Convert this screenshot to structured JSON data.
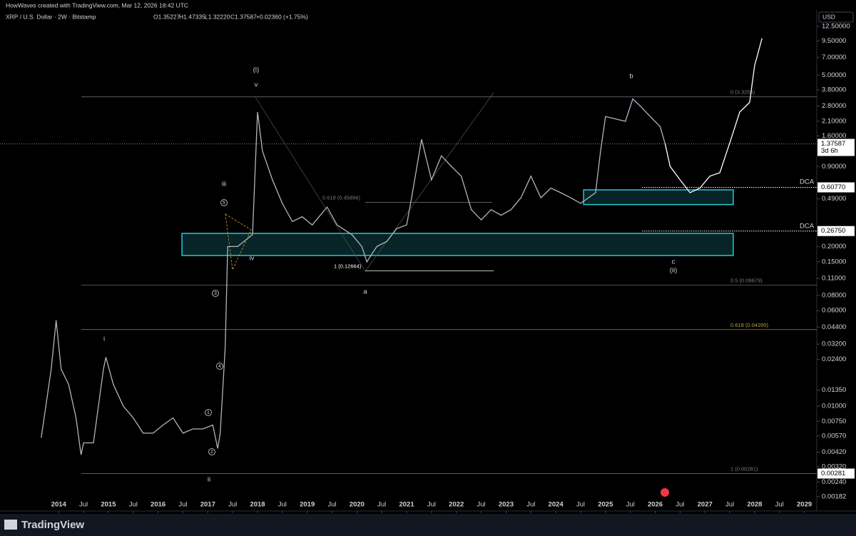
{
  "chart_data": {
    "type": "line",
    "log_scale": true,
    "title": "HowWaves created with TradingView.com, Mar 12, 2026 18:42 UTC",
    "subtitle": "XRP / U.S. Dollar · 2W · Bitstamp",
    "ohlc": [
      "O1.35227",
      "H1.47335",
      "L1.32220",
      "C1.37587",
      "+0.02360 (+1.75%)"
    ],
    "currency": "USD",
    "brand": "TradingView",
    "xlim": [
      2012.82,
      2029.25
    ],
    "ylim": [
      0.00177,
      15.7
    ],
    "xticks": [
      2014,
      {
        "value": 2014.5,
        "label": "Jul"
      },
      2015,
      {
        "value": 2015.5,
        "label": "Jul"
      },
      2016,
      {
        "value": 2016.5,
        "label": "Jul"
      },
      2017,
      {
        "value": 2017.5,
        "label": "Jul"
      },
      2018,
      {
        "value": 2018.5,
        "label": "Jul"
      },
      2019,
      {
        "value": 2019.5,
        "label": "Jul"
      },
      2020,
      {
        "value": 2020.5,
        "label": "Jul"
      },
      2021,
      {
        "value": 2021.5,
        "label": "Jul"
      },
      2022,
      {
        "value": 2022.5,
        "label": "Jul"
      },
      2023,
      {
        "value": 2023.5,
        "label": "Jul"
      },
      2024,
      {
        "value": 2024.5,
        "label": "Jul"
      },
      2025,
      {
        "value": 2025.5,
        "label": "Jul"
      },
      2026,
      {
        "value": 2026.5,
        "label": "Jul"
      },
      2027,
      {
        "value": 2027.5,
        "label": "Jul"
      },
      2028,
      {
        "value": 2028.5,
        "label": "Jul"
      },
      2029
    ],
    "yticks": [
      {
        "value": 12.5,
        "label": "12.50000"
      },
      {
        "value": 9.5,
        "label": "9.50000"
      },
      {
        "value": 7,
        "label": "7.00000"
      },
      {
        "value": 5,
        "label": "5.00000"
      },
      {
        "value": 3.8,
        "label": "3.80000"
      },
      {
        "value": 2.8,
        "label": "2.80000"
      },
      {
        "value": 2.1,
        "label": "2.10000"
      },
      {
        "value": 1.6,
        "label": "1.60000"
      },
      {
        "value": 0.9,
        "label": "0.90000"
      },
      {
        "value": 0.49,
        "label": "0.49000"
      },
      {
        "value": 0.2,
        "label": "0.20000"
      },
      {
        "value": 0.15,
        "label": "0.15000"
      },
      {
        "value": 0.11,
        "label": "0.11000"
      },
      {
        "value": 0.08,
        "label": "0.08000"
      },
      {
        "value": 0.06,
        "label": "0.06000"
      },
      {
        "value": 0.044,
        "label": "0.04400"
      },
      {
        "value": 0.032,
        "label": "0.03200"
      },
      {
        "value": 0.024,
        "label": "0.02400"
      },
      {
        "value": 0.0135,
        "label": "0.01350"
      },
      {
        "value": 0.01,
        "label": "0.01000"
      },
      {
        "value": 0.0075,
        "label": "0.00750"
      },
      {
        "value": 0.0057,
        "label": "0.00570"
      },
      {
        "value": 0.0042,
        "label": "0.00420"
      },
      {
        "value": 0.0032,
        "label": "0.00320"
      },
      {
        "value": 0.0024,
        "label": "0.00240"
      },
      {
        "value": 0.00182,
        "label": "0.00182"
      }
    ],
    "series": [
      {
        "color": "#b2b5be",
        "x": [
          2013.65,
          2013.85,
          2013.95,
          2014.05,
          2014.2,
          2014.35,
          2014.45,
          2014.5,
          2014.7,
          2014.9,
          2014.95,
          2015.1,
          2015.3,
          2015.5,
          2015.7,
          2015.9,
          2016.1,
          2016.3,
          2016.5,
          2016.7,
          2016.9,
          2017.1,
          2017.2,
          2017.25,
          2017.35,
          2017.4,
          2017.5,
          2017.6,
          2017.9,
          2018.0,
          2018.1,
          2018.3,
          2018.5,
          2018.7,
          2018.9,
          2019.1,
          2019.4,
          2019.6,
          2019.9,
          2020.1,
          2020.2,
          2020.4,
          2020.6,
          2020.8,
          2021.0,
          2021.1,
          2021.3,
          2021.5,
          2021.7,
          2021.9,
          2022.1,
          2022.3,
          2022.5,
          2022.7,
          2022.9,
          2023.1,
          2023.3,
          2023.5,
          2023.7,
          2023.9,
          2024.1,
          2024.3,
          2024.5,
          2024.8,
          2024.9,
          2025.0,
          2025.2,
          2025.4,
          2025.55,
          2025.7,
          2025.9,
          2026.1,
          2026.2
        ],
        "values": [
          0.0055,
          0.02,
          0.05,
          0.02,
          0.015,
          0.008,
          0.004,
          0.005,
          0.005,
          0.02,
          0.025,
          0.015,
          0.01,
          0.008,
          0.006,
          0.006,
          0.007,
          0.008,
          0.006,
          0.0065,
          0.0065,
          0.007,
          0.0045,
          0.006,
          0.03,
          0.2,
          0.2,
          0.2,
          0.25,
          2.5,
          1.2,
          0.7,
          0.45,
          0.32,
          0.35,
          0.3,
          0.42,
          0.3,
          0.25,
          0.2,
          0.15,
          0.2,
          0.22,
          0.28,
          0.3,
          0.5,
          1.5,
          0.7,
          1.1,
          0.9,
          0.75,
          0.4,
          0.33,
          0.4,
          0.36,
          0.4,
          0.5,
          0.75,
          0.5,
          0.6,
          0.55,
          0.5,
          0.45,
          0.55,
          1.2,
          2.3,
          2.2,
          2.1,
          3.2,
          2.8,
          2.3,
          1.9,
          1.38
        ]
      },
      {
        "color": "#ffffff",
        "x": [
          2026.2,
          2026.3,
          2026.5,
          2026.7,
          2026.9,
          2027.1,
          2027.3,
          2027.5,
          2027.7,
          2027.9,
          2028.0,
          2028.15
        ],
        "values": [
          1.38,
          0.9,
          0.7,
          0.55,
          0.6,
          0.75,
          0.8,
          1.4,
          2.5,
          3.0,
          6,
          10
        ]
      }
    ],
    "levels": [
      {
        "value": 3.3256,
        "label": "0 (3.3256)",
        "color": "#787b86"
      },
      {
        "value": 0.09679,
        "label": "0.5 (0.09679)",
        "color": "#787b86"
      },
      {
        "value": 0.042,
        "label": "0.618 (0.04200)",
        "color": "#b5a642"
      },
      {
        "value": 0.00281,
        "label": "1 (0.00281)",
        "color": "#787b86"
      },
      {
        "value": 0.45896,
        "label": "0.618 (0.45896)",
        "color": "#787b86"
      },
      {
        "value": 0.12664,
        "label": "1 (0.12664)",
        "color": "#ffffff"
      }
    ],
    "zones": [
      {
        "low": 0.169,
        "high": 0.256,
        "start": 2016.48,
        "end": 2027.57,
        "color": "#26c6da"
      },
      {
        "low": 0.44,
        "high": 0.58,
        "start": 2024.56,
        "end": 2027.57,
        "color": "#26c6da"
      }
    ],
    "price_marks": [
      {
        "value": 1.37587,
        "label": "1.37587",
        "sub": "3d 6h"
      },
      {
        "value": 0.6077,
        "label": "0.60770"
      },
      {
        "value": 0.2675,
        "label": "0.26750"
      },
      {
        "value": 0.00281,
        "label": "0.00281"
      }
    ],
    "annotations": [
      "(i)",
      "v",
      "iii",
      "5",
      "iv",
      "3",
      "4",
      "1",
      "2",
      "ii",
      "i",
      "a",
      "b",
      "c",
      "(ii)",
      "DCA",
      "DCA"
    ]
  }
}
